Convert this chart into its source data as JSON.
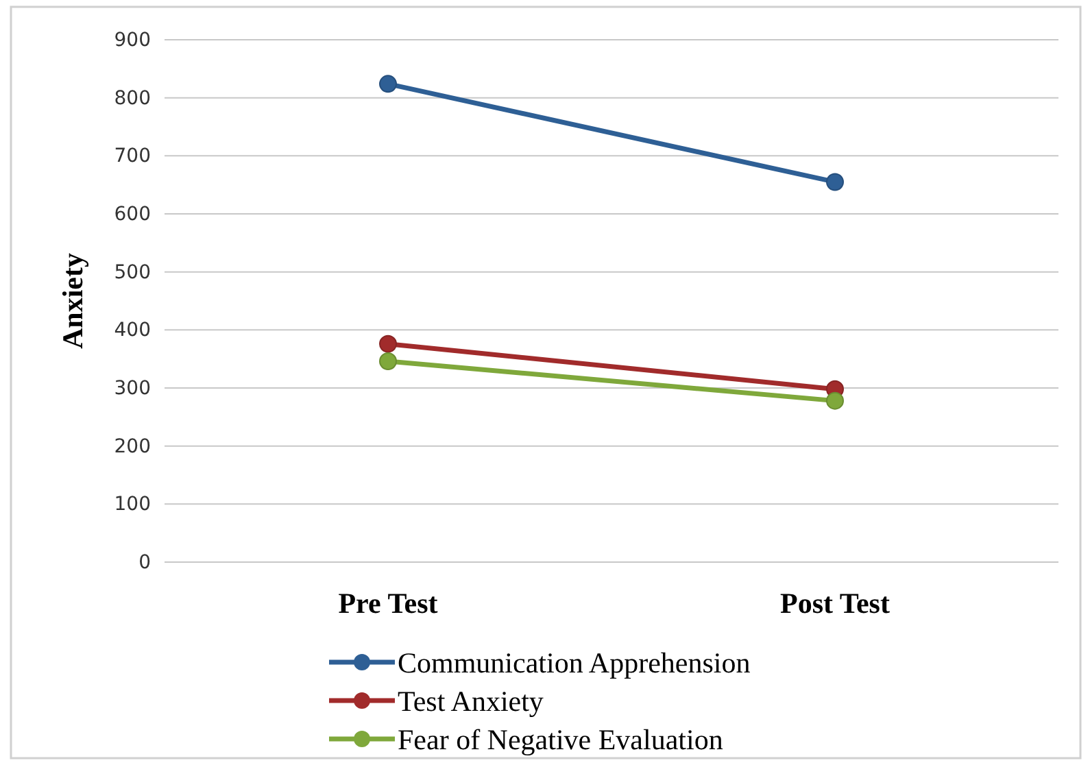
{
  "chart_data": {
    "type": "line",
    "ylabel": "Anxiety",
    "categories": [
      "Pre Test",
      "Post Test"
    ],
    "series": [
      {
        "name": "Communication Apprehension",
        "color": "#2e5f95",
        "values": [
          824,
          655
        ]
      },
      {
        "name": "Test Anxiety",
        "color": "#a12b2b",
        "values": [
          376,
          298
        ]
      },
      {
        "name": "Fear of Negative Evaluation",
        "color": "#7fa83b",
        "values": [
          346,
          278
        ]
      }
    ],
    "ylim": [
      0,
      900
    ],
    "yticks": [
      0,
      100,
      200,
      300,
      400,
      500,
      600,
      700,
      800,
      900
    ],
    "grid": "y",
    "legend": "bottom",
    "marker": "circle",
    "line_style": "solid"
  }
}
